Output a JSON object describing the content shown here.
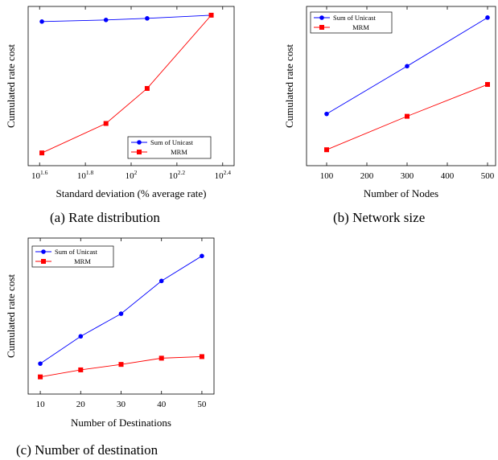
{
  "chart_data": [
    {
      "id": "a",
      "type": "line",
      "caption": "(a)  Rate distribution",
      "xlabel": "Standard deviation (% average rate)",
      "ylabel": "Cumulated rate cost",
      "xscale": "log10",
      "xlim": [
        1.55,
        2.45
      ],
      "xticks": [
        1.6,
        1.8,
        2.0,
        2.2,
        2.4
      ],
      "xtick_labels": [
        {
          "base": "10",
          "exp": "1.6"
        },
        {
          "base": "10",
          "exp": "1.8"
        },
        {
          "base": "10",
          "exp": "2"
        },
        {
          "base": "10",
          "exp": "2.2"
        },
        {
          "base": "10",
          "exp": "2.4"
        }
      ],
      "ylim": [
        0,
        1
      ],
      "yticks_shown": false,
      "grid": false,
      "legend": "bottom-right",
      "series": [
        {
          "name": "Sum of Unicast",
          "color": "#0000ff",
          "marker": "circle",
          "x": [
            1.61,
            1.89,
            2.07,
            2.35
          ],
          "y": [
            0.905,
            0.915,
            0.925,
            0.945
          ]
        },
        {
          "name": "MRM",
          "color": "#ff0000",
          "marker": "square",
          "x": [
            1.61,
            1.89,
            2.07,
            2.35
          ],
          "y": [
            0.08,
            0.265,
            0.485,
            0.945
          ]
        }
      ]
    },
    {
      "id": "b",
      "type": "line",
      "caption": "(b)  Network size",
      "xlabel": "Number of Nodes",
      "ylabel": "Cumulated rate cost",
      "xscale": "linear",
      "xlim": [
        50,
        520
      ],
      "xticks": [
        100,
        200,
        300,
        400,
        500
      ],
      "xtick_labels": [
        "100",
        "200",
        "300",
        "400",
        "500"
      ],
      "ylim": [
        0,
        1
      ],
      "yticks_shown": false,
      "grid": false,
      "legend": "top-left",
      "series": [
        {
          "name": "Sum of Unicast",
          "color": "#0000ff",
          "marker": "circle",
          "x": [
            100,
            300,
            500
          ],
          "y": [
            0.325,
            0.625,
            0.93
          ]
        },
        {
          "name": "MRM",
          "color": "#ff0000",
          "marker": "square",
          "x": [
            100,
            300,
            500
          ],
          "y": [
            0.1,
            0.31,
            0.51
          ]
        }
      ]
    },
    {
      "id": "c",
      "type": "line",
      "caption": "(c)  Number of destination",
      "xlabel": "Number of Destinations",
      "ylabel": "Cumulated rate cost",
      "xscale": "linear",
      "xlim": [
        7,
        53
      ],
      "xticks": [
        10,
        20,
        30,
        40,
        50
      ],
      "xtick_labels": [
        "10",
        "20",
        "30",
        "40",
        "50"
      ],
      "ylim": [
        0,
        1
      ],
      "yticks_shown": false,
      "grid": false,
      "legend": "top-left",
      "series": [
        {
          "name": "Sum of Unicast",
          "color": "#0000ff",
          "marker": "circle",
          "x": [
            10,
            20,
            30,
            40,
            50
          ],
          "y": [
            0.195,
            0.37,
            0.515,
            0.725,
            0.885
          ]
        },
        {
          "name": "MRM",
          "color": "#ff0000",
          "marker": "square",
          "x": [
            10,
            20,
            30,
            40,
            50
          ],
          "y": [
            0.11,
            0.155,
            0.19,
            0.23,
            0.24
          ]
        }
      ]
    }
  ]
}
